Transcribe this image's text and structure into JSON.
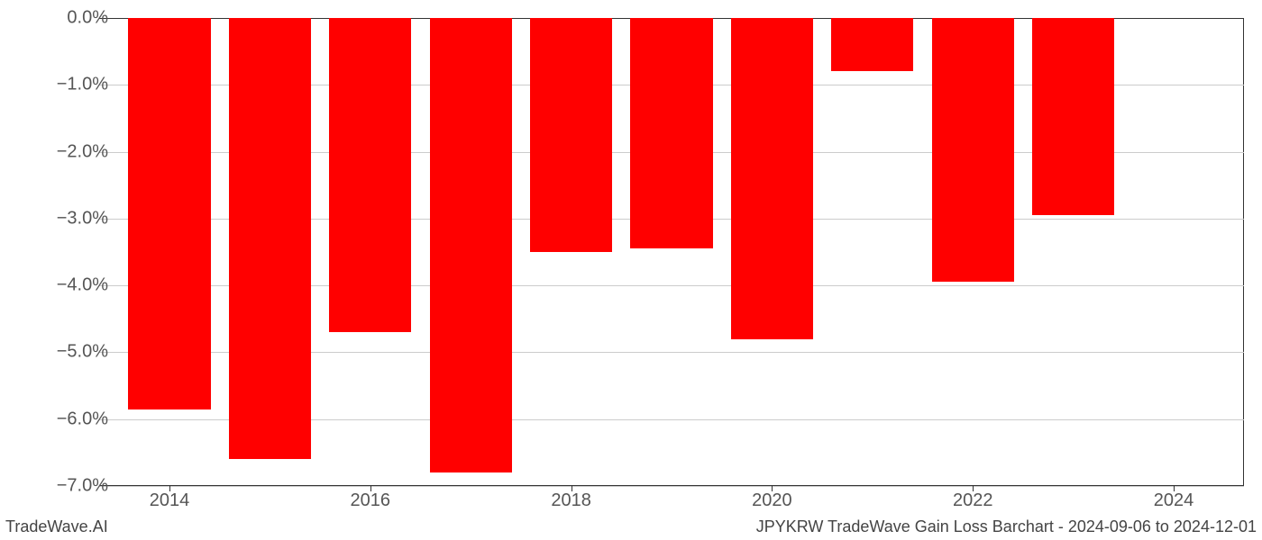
{
  "chart": {
    "type": "bar",
    "years": [
      2014,
      2015,
      2016,
      2017,
      2018,
      2019,
      2020,
      2021,
      2022,
      2023
    ],
    "values": [
      -5.85,
      -6.6,
      -4.7,
      -6.8,
      -3.5,
      -3.45,
      -4.8,
      -0.8,
      -3.95,
      -2.95
    ],
    "bar_color": "#ff0000",
    "background_color": "#ffffff",
    "grid_color": "#cccccc",
    "axis_color": "#333333",
    "tick_label_color": "#555555",
    "footer_color": "#444444",
    "ylim": [
      -7.0,
      0.0
    ],
    "ytick_step": 1.0,
    "ytick_labels": [
      "0.0%",
      "−1.0%",
      "−2.0%",
      "−3.0%",
      "−4.0%",
      "−5.0%",
      "−6.0%",
      "−7.0%"
    ],
    "xtick_years": [
      2014,
      2016,
      2018,
      2020,
      2022,
      2024
    ],
    "xlim": [
      2013.3,
      2024.7
    ],
    "bar_width_years": 0.82,
    "tick_fontsize": 20,
    "footer_fontsize": 18
  },
  "footer": {
    "left": "TradeWave.AI",
    "right": "JPYKRW TradeWave Gain Loss Barchart - 2024-09-06 to 2024-12-01"
  }
}
